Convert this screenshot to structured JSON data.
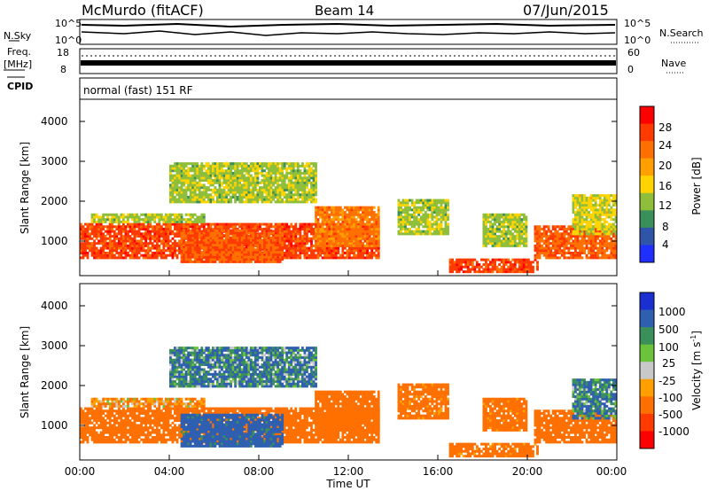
{
  "header": {
    "station": "McMurdo (fitACF)",
    "beam": "Beam 14",
    "date": "07/Jun/2015"
  },
  "noise_panel": {
    "left_label": "N.Sky",
    "right_label": "N.Search",
    "left_ticks": [
      "10^5",
      "10^0"
    ],
    "right_ticks": [
      "10^5",
      "10^0"
    ]
  },
  "freq_panel": {
    "left_label_1": "Freq.",
    "left_label_2": "[MHz]",
    "right_label": "Nave",
    "left_ticks": [
      "18",
      "8"
    ],
    "right_ticks": [
      "60",
      "0"
    ]
  },
  "cpid": {
    "label": "CPID",
    "value": "normal (fast) 151 RF"
  },
  "power_panel": {
    "ylabel": "Slant Range [km]",
    "yticks": [
      "4000",
      "3000",
      "2000",
      "1000"
    ],
    "colorbar_label": "Power [dB]",
    "colorbar_ticks": [
      "28",
      "24",
      "20",
      "16",
      "12",
      "8",
      "4"
    ],
    "colorbar_colors": [
      "#ff0000",
      "#ff3a00",
      "#ff7000",
      "#ffa000",
      "#ffd400",
      "#8fbe3a",
      "#3a8f5a",
      "#2e55a8",
      "#1f2fff"
    ]
  },
  "velocity_panel": {
    "ylabel": "Slant Range [km]",
    "yticks": [
      "4000",
      "3000",
      "2000",
      "1000"
    ],
    "colorbar_label": "Velocity [m s",
    "colorbar_label_sup": "-1",
    "colorbar_label_end": "]",
    "colorbar_ticks": [
      "1000",
      "500",
      "100",
      "25",
      "-25",
      "-100",
      "-500",
      "-1000"
    ],
    "colorbar_colors": [
      "#1a2fd0",
      "#2e5fb0",
      "#3a8f5a",
      "#6cc23a",
      "#c8c8c8",
      "#ffa000",
      "#ff7000",
      "#ff3a00",
      "#ff0000"
    ]
  },
  "x_axis": {
    "ticks": [
      "00:00",
      "04:00",
      "08:00",
      "12:00",
      "16:00",
      "20:00",
      "00:00"
    ],
    "label": "Time UT"
  },
  "chart_data": {
    "type": "heatmap",
    "x_range_hours": [
      0,
      24
    ],
    "y_range_km": [
      180,
      4600
    ],
    "bands": [
      {
        "t0": 0.0,
        "t1": 13.3,
        "r_lo": 600,
        "r_hi": 1500,
        "power_db": 26,
        "vel": -300
      },
      {
        "t0": 0.5,
        "t1": 5.5,
        "r_lo": 1500,
        "r_hi": 1700,
        "power_db": 12,
        "vel": -100
      },
      {
        "t0": 4.0,
        "t1": 10.5,
        "r_lo": 2000,
        "r_hi": 3000,
        "power_db": 12,
        "vel": 100
      },
      {
        "t0": 4.5,
        "t1": 9.0,
        "r_lo": 500,
        "r_hi": 1300,
        "power_db": 24,
        "vel": 200
      },
      {
        "t0": 10.5,
        "t1": 13.3,
        "r_lo": 900,
        "r_hi": 1900,
        "power_db": 22,
        "vel": -300
      },
      {
        "t0": 14.2,
        "t1": 16.5,
        "r_lo": 1200,
        "r_hi": 2100,
        "power_db": 12,
        "vel": -200
      },
      {
        "t0": 16.5,
        "t1": 20.5,
        "r_lo": 250,
        "r_hi": 600,
        "power_db": 26,
        "vel": -200
      },
      {
        "t0": 18.0,
        "t1": 20.0,
        "r_lo": 900,
        "r_hi": 1700,
        "power_db": 12,
        "vel": -200
      },
      {
        "t0": 20.3,
        "t1": 24.0,
        "r_lo": 600,
        "r_hi": 1400,
        "power_db": 24,
        "vel": -300
      },
      {
        "t0": 22.0,
        "t1": 24.0,
        "r_lo": 1200,
        "r_hi": 2200,
        "power_db": 14,
        "vel": 100
      }
    ]
  }
}
